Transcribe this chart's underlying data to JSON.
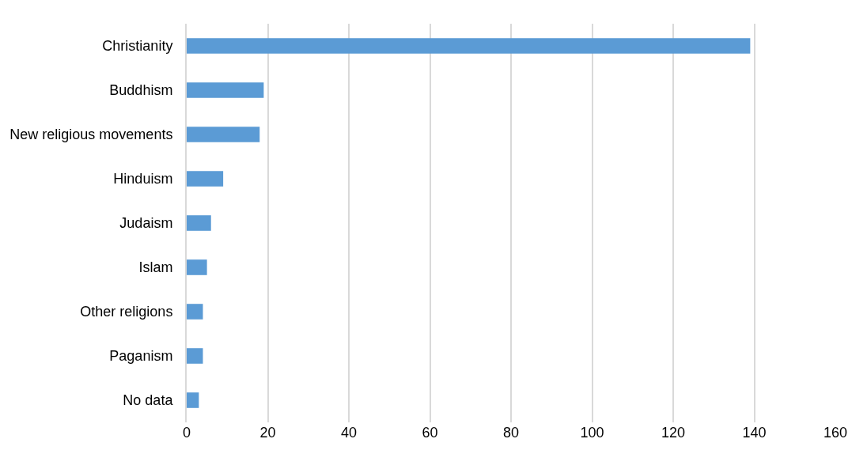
{
  "chart_data": {
    "type": "bar",
    "orientation": "horizontal",
    "categories": [
      "Christianity",
      "Buddhism",
      "New religious movements",
      "Hinduism",
      "Judaism",
      "Islam",
      "Other religions",
      "Paganism",
      "No data"
    ],
    "values": [
      139,
      19,
      18,
      9,
      6,
      5,
      4,
      4,
      3
    ],
    "color": "#5b9bd5",
    "xlim": [
      0,
      160
    ],
    "xticks": [
      0,
      20,
      40,
      60,
      80,
      100,
      120,
      140,
      160
    ],
    "grid": "x"
  }
}
